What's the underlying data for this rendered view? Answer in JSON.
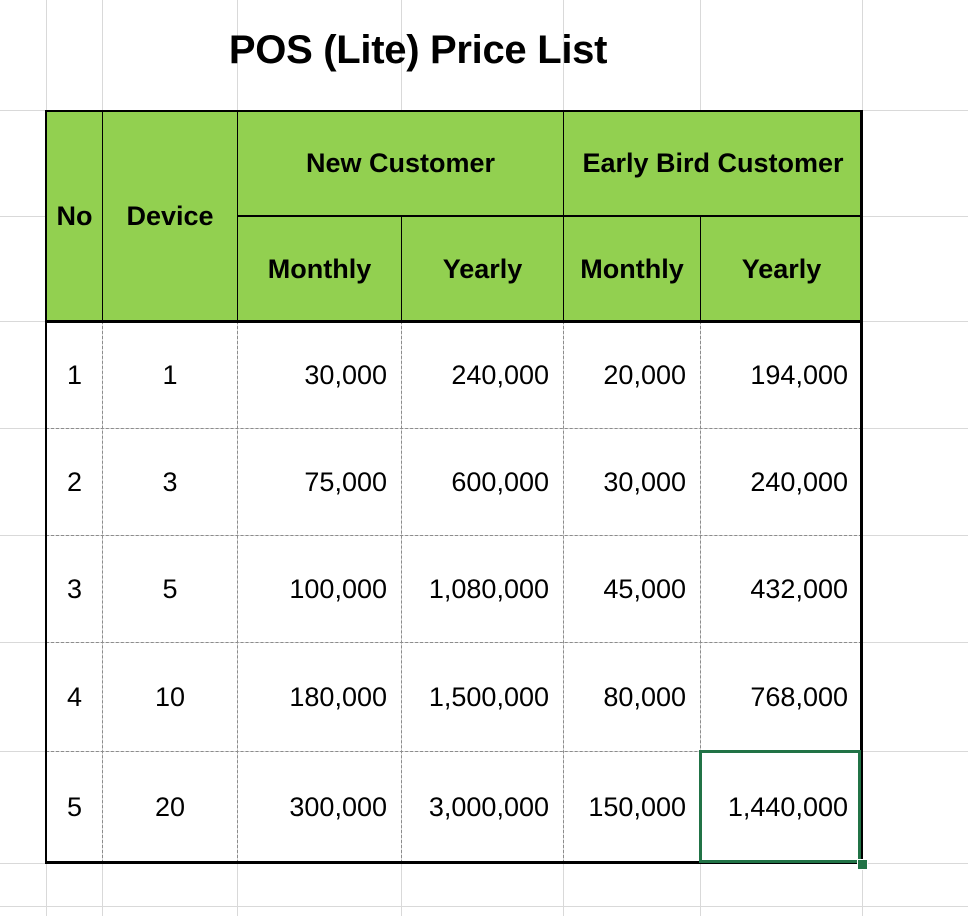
{
  "sheet": {
    "title": "POS (Lite) Price List",
    "selected_cell_value": "1,440,000"
  },
  "table": {
    "header": {
      "no": "No",
      "device": "Device",
      "group_new": "New Customer",
      "group_early": "Early Bird Customer",
      "monthly": "Monthly",
      "yearly": "Yearly"
    },
    "rows": [
      {
        "no": "1",
        "device": "1",
        "new_monthly": "30,000",
        "new_yearly": "240,000",
        "early_monthly": "20,000",
        "early_yearly": "194,000"
      },
      {
        "no": "2",
        "device": "3",
        "new_monthly": "75,000",
        "new_yearly": "600,000",
        "early_monthly": "30,000",
        "early_yearly": "240,000"
      },
      {
        "no": "3",
        "device": "5",
        "new_monthly": "100,000",
        "new_yearly": "1,080,000",
        "early_monthly": "45,000",
        "early_yearly": "432,000"
      },
      {
        "no": "4",
        "device": "10",
        "new_monthly": "180,000",
        "new_yearly": "1,500,000",
        "early_monthly": "80,000",
        "early_yearly": "768,000"
      },
      {
        "no": "5",
        "device": "20",
        "new_monthly": "300,000",
        "new_yearly": "3,000,000",
        "early_monthly": "150,000",
        "early_yearly": "1,440,000"
      }
    ]
  },
  "colors": {
    "header_fill": "#92d050",
    "selection": "#217346",
    "gridline": "#d9d9d9"
  }
}
